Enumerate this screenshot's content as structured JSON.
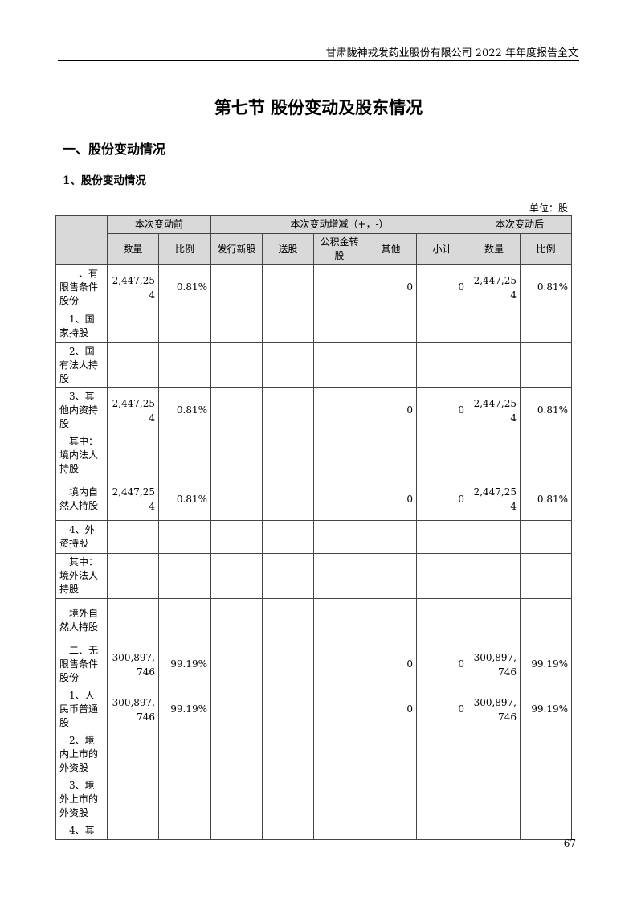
{
  "header": {
    "running_title": "甘肃陇神戎发药业股份有限公司 2022 年年度报告全文"
  },
  "section_title": "第七节 股份变动及股东情况",
  "heading1": "一、股份变动情况",
  "heading2": "1、股份变动情况",
  "unit": "单位：股",
  "table": {
    "group_headers": [
      "本次变动前",
      "本次变动增减（+，-）",
      "本次变动后"
    ],
    "sub_headers": [
      "数量",
      "比例",
      "发行新股",
      "送股",
      "公积金转股",
      "其他",
      "小计",
      "数量",
      "比例"
    ],
    "rows": [
      {
        "label": "一、有限售条件股份",
        "cells": [
          "2,447,254",
          "0.81%",
          "",
          "",
          "",
          "0",
          "0",
          "2,447,254",
          "0.81%"
        ]
      },
      {
        "label": "1、国家持股",
        "cells": [
          "",
          "",
          "",
          "",
          "",
          "",
          "",
          "",
          ""
        ]
      },
      {
        "label": "2、国有法人持股",
        "cells": [
          "",
          "",
          "",
          "",
          "",
          "",
          "",
          "",
          ""
        ]
      },
      {
        "label": "3、其他内资持股",
        "cells": [
          "2,447,254",
          "0.81%",
          "",
          "",
          "",
          "0",
          "0",
          "2,447,254",
          "0.81%"
        ]
      },
      {
        "label": "其中：境内法人持股",
        "cells": [
          "",
          "",
          "",
          "",
          "",
          "",
          "",
          "",
          ""
        ]
      },
      {
        "label": "境内自然人持股",
        "cells": [
          "2,447,254",
          "0.81%",
          "",
          "",
          "",
          "0",
          "0",
          "2,447,254",
          "0.81%"
        ]
      },
      {
        "label": "4、外资持股",
        "cells": [
          "",
          "",
          "",
          "",
          "",
          "",
          "",
          "",
          ""
        ]
      },
      {
        "label": "其中：境外法人持股",
        "cells": [
          "",
          "",
          "",
          "",
          "",
          "",
          "",
          "",
          ""
        ]
      },
      {
        "label": "境外自然人持股",
        "cells": [
          "",
          "",
          "",
          "",
          "",
          "",
          "",
          "",
          ""
        ]
      },
      {
        "label": "二、无限售条件股份",
        "cells": [
          "300,897,746",
          "99.19%",
          "",
          "",
          "",
          "0",
          "0",
          "300,897,746",
          "99.19%"
        ]
      },
      {
        "label": "1、人民币普通股",
        "cells": [
          "300,897,746",
          "99.19%",
          "",
          "",
          "",
          "0",
          "0",
          "300,897,746",
          "99.19%"
        ]
      },
      {
        "label": "2、境内上市的外资股",
        "cells": [
          "",
          "",
          "",
          "",
          "",
          "",
          "",
          "",
          ""
        ]
      },
      {
        "label": "3、境外上市的外资股",
        "cells": [
          "",
          "",
          "",
          "",
          "",
          "",
          "",
          "",
          ""
        ]
      },
      {
        "label": "4、其",
        "cells": [
          "",
          "",
          "",
          "",
          "",
          "",
          "",
          "",
          ""
        ]
      }
    ]
  },
  "page_number": "67",
  "colors": {
    "header_fill": "#d9d9d9",
    "border": "#444444"
  }
}
